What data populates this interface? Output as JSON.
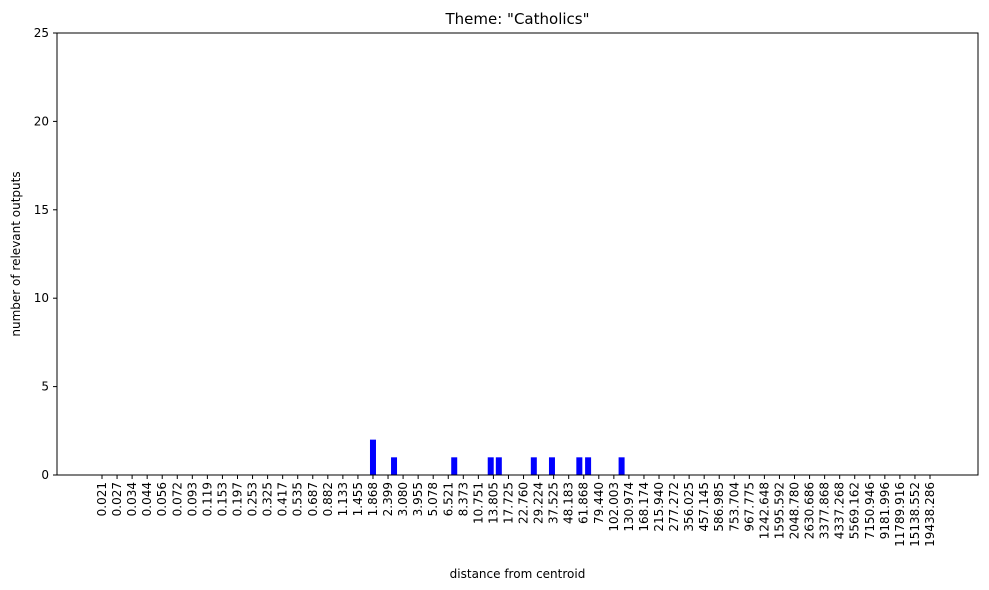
{
  "chart_data": {
    "type": "bar",
    "title": "Theme: \"Catholics\"",
    "xlabel": "distance from centroid",
    "ylabel": "number of relevant outputs",
    "ylim": [
      0,
      25
    ],
    "yticks": [
      0,
      5,
      10,
      15,
      20,
      25
    ],
    "grid": false,
    "bar_color": "#0000ff",
    "categories": [
      "0.021",
      "0.027",
      "0.034",
      "0.044",
      "0.056",
      "0.072",
      "0.093",
      "0.119",
      "0.153",
      "0.197",
      "0.253",
      "0.325",
      "0.417",
      "0.535",
      "0.687",
      "0.882",
      "1.133",
      "1.455",
      "1.868",
      "2.399",
      "3.080",
      "3.955",
      "5.078",
      "6.521",
      "8.373",
      "10.751",
      "13.805",
      "17.725",
      "22.760",
      "29.224",
      "37.525",
      "48.183",
      "61.868",
      "79.440",
      "102.003",
      "130.974",
      "168.174",
      "215.940",
      "277.272",
      "356.025",
      "457.145",
      "586.985",
      "753.704",
      "967.775",
      "1242.648",
      "1595.592",
      "2048.780",
      "2630.686",
      "3377.868",
      "4337.268",
      "5569.162",
      "7150.946",
      "9181.996",
      "11789.916",
      "15138.552",
      "19438.286"
    ],
    "bars": [
      {
        "x": 1.868,
        "y": 2
      },
      {
        "x": 2.65,
        "y": 1
      },
      {
        "x": 7.2,
        "y": 1
      },
      {
        "x": 13.2,
        "y": 1
      },
      {
        "x": 15.1,
        "y": 1
      },
      {
        "x": 27.0,
        "y": 1
      },
      {
        "x": 36.5,
        "y": 1
      },
      {
        "x": 57.5,
        "y": 1
      },
      {
        "x": 66.5,
        "y": 1
      },
      {
        "x": 116.0,
        "y": 1
      }
    ]
  }
}
